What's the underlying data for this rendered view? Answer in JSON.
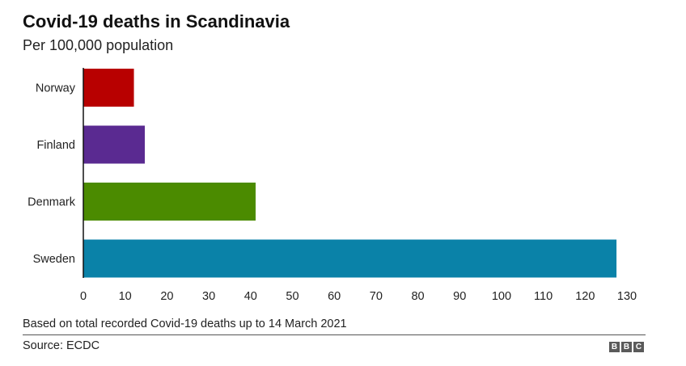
{
  "header": {
    "title": "Covid-19 deaths in Scandinavia",
    "subtitle": "Per 100,000 population"
  },
  "chart_data": {
    "type": "bar",
    "orientation": "horizontal",
    "title": "Covid-19 deaths in Scandinavia",
    "subtitle": "Per 100,000 population",
    "categories": [
      "Norway",
      "Finland",
      "Denmark",
      "Sweden"
    ],
    "values": [
      12.1,
      14.7,
      41.2,
      127.5
    ],
    "colors": [
      "#b80000",
      "#5a2a91",
      "#4b8b00",
      "#0a82a8"
    ],
    "xlim": [
      0,
      130
    ],
    "xticks": [
      0,
      10,
      20,
      30,
      40,
      50,
      60,
      70,
      80,
      90,
      100,
      110,
      120,
      130
    ],
    "xlabel": "",
    "ylabel": "",
    "grid": false,
    "legend": "none"
  },
  "footer": {
    "note": "Based on total recorded Covid-19 deaths up to 14 March 2021",
    "source": "Source: ECDC",
    "logo_letters": [
      "B",
      "B",
      "C"
    ]
  }
}
